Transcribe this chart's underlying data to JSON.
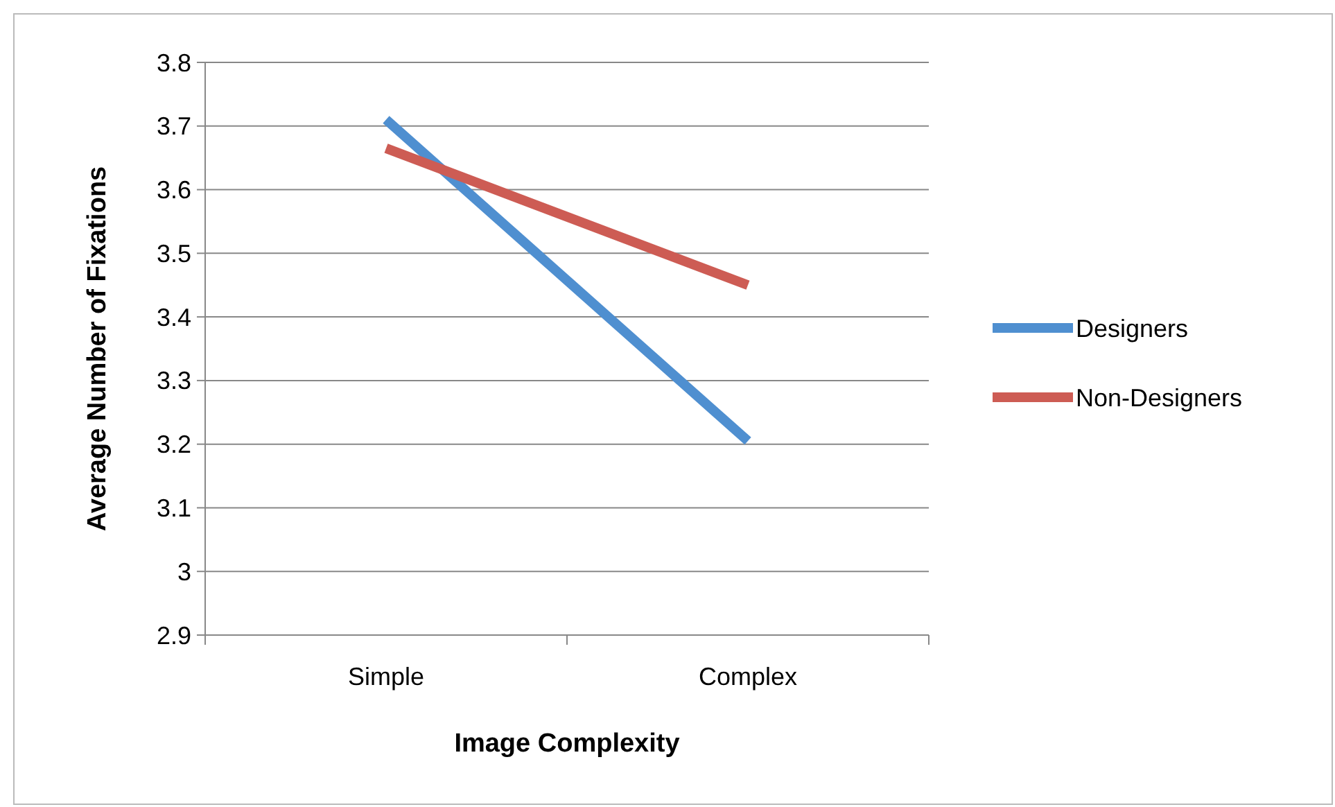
{
  "chart_data": {
    "type": "line",
    "xlabel": "Image Complexity",
    "ylabel": "Average Number of Fixations",
    "categories": [
      "Simple",
      "Complex"
    ],
    "series": [
      {
        "name": "Designers",
        "color": "#4f8fd0",
        "values": [
          3.71,
          3.205
        ]
      },
      {
        "name": "Non-Designers",
        "color": "#cd5c54",
        "values": [
          3.665,
          3.45
        ]
      }
    ],
    "ylim": [
      2.9,
      3.8
    ],
    "yticks": [
      2.9,
      3,
      3.1,
      3.2,
      3.3,
      3.4,
      3.5,
      3.6,
      3.7,
      3.8
    ],
    "grid": "y",
    "legend": "right",
    "marker": "none",
    "line_style": "solid"
  }
}
